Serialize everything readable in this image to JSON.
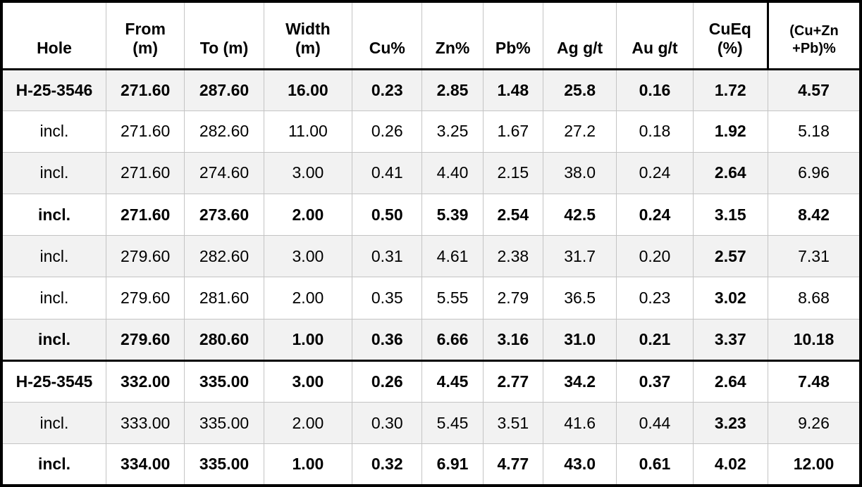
{
  "chart_data": {
    "type": "table",
    "columns": [
      {
        "key": "hole",
        "lines": [
          "Hole"
        ]
      },
      {
        "key": "from",
        "lines": [
          "From",
          "(m)"
        ]
      },
      {
        "key": "to",
        "lines": [
          "To (m)"
        ]
      },
      {
        "key": "width",
        "lines": [
          "Width",
          "(m)"
        ]
      },
      {
        "key": "cu",
        "lines": [
          "Cu%"
        ]
      },
      {
        "key": "zn",
        "lines": [
          "Zn%"
        ]
      },
      {
        "key": "pb",
        "lines": [
          "Pb%"
        ]
      },
      {
        "key": "ag",
        "lines": [
          "Ag g/t"
        ]
      },
      {
        "key": "au",
        "lines": [
          "Au g/t"
        ]
      },
      {
        "key": "cueq",
        "lines": [
          "CuEq",
          "(%)"
        ]
      },
      {
        "key": "cuznpb",
        "lines": [
          "(Cu+Zn",
          "+Pb)%"
        ]
      }
    ],
    "rows": [
      {
        "hole": "H-25-3546",
        "values": [
          "271.60",
          "287.60",
          "16.00",
          "0.23",
          "2.85",
          "1.48",
          "25.8",
          "0.16",
          "1.72",
          "4.57"
        ],
        "bold": true,
        "cueq_bold": false,
        "shaded": true,
        "group_start": false
      },
      {
        "hole": "incl.",
        "values": [
          "271.60",
          "282.60",
          "11.00",
          "0.26",
          "3.25",
          "1.67",
          "27.2",
          "0.18",
          "1.92",
          "5.18"
        ],
        "bold": false,
        "cueq_bold": true,
        "shaded": false,
        "group_start": false
      },
      {
        "hole": "incl.",
        "values": [
          "271.60",
          "274.60",
          "3.00",
          "0.41",
          "4.40",
          "2.15",
          "38.0",
          "0.24",
          "2.64",
          "6.96"
        ],
        "bold": false,
        "cueq_bold": true,
        "shaded": true,
        "group_start": false
      },
      {
        "hole": "incl.",
        "values": [
          "271.60",
          "273.60",
          "2.00",
          "0.50",
          "5.39",
          "2.54",
          "42.5",
          "0.24",
          "3.15",
          "8.42"
        ],
        "bold": true,
        "cueq_bold": false,
        "shaded": false,
        "group_start": false
      },
      {
        "hole": "incl.",
        "values": [
          "279.60",
          "282.60",
          "3.00",
          "0.31",
          "4.61",
          "2.38",
          "31.7",
          "0.20",
          "2.57",
          "7.31"
        ],
        "bold": false,
        "cueq_bold": true,
        "shaded": true,
        "group_start": false
      },
      {
        "hole": "incl.",
        "values": [
          "279.60",
          "281.60",
          "2.00",
          "0.35",
          "5.55",
          "2.79",
          "36.5",
          "0.23",
          "3.02",
          "8.68"
        ],
        "bold": false,
        "cueq_bold": true,
        "shaded": false,
        "group_start": false
      },
      {
        "hole": "incl.",
        "values": [
          "279.60",
          "280.60",
          "1.00",
          "0.36",
          "6.66",
          "3.16",
          "31.0",
          "0.21",
          "3.37",
          "10.18"
        ],
        "bold": true,
        "cueq_bold": false,
        "shaded": true,
        "group_start": false
      },
      {
        "hole": "H-25-3545",
        "values": [
          "332.00",
          "335.00",
          "3.00",
          "0.26",
          "4.45",
          "2.77",
          "34.2",
          "0.37",
          "2.64",
          "7.48"
        ],
        "bold": true,
        "cueq_bold": false,
        "shaded": false,
        "group_start": true
      },
      {
        "hole": "incl.",
        "values": [
          "333.00",
          "335.00",
          "2.00",
          "0.30",
          "5.45",
          "3.51",
          "41.6",
          "0.44",
          "3.23",
          "9.26"
        ],
        "bold": false,
        "cueq_bold": true,
        "shaded": true,
        "group_start": false
      },
      {
        "hole": "incl.",
        "values": [
          "334.00",
          "335.00",
          "1.00",
          "0.32",
          "6.91",
          "4.77",
          "43.0",
          "0.61",
          "4.02",
          "12.00"
        ],
        "bold": true,
        "cueq_bold": false,
        "shaded": false,
        "group_start": false
      }
    ]
  },
  "styles": {
    "shaded_row_bg": "#f2f2f2",
    "grid_line": "#c4c4c4",
    "border_color": "#000000",
    "text_color": "#000000"
  }
}
